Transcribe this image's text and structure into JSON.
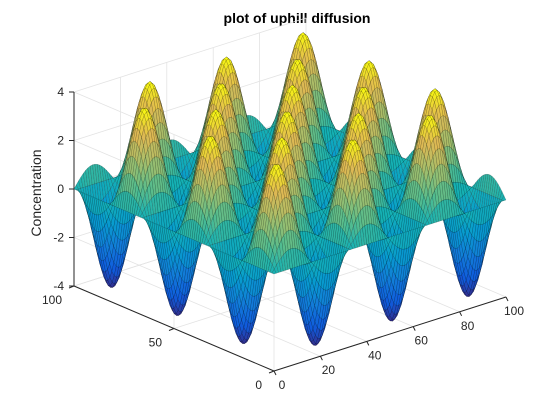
{
  "chart_data": {
    "type": "surface",
    "title": "plot of uphill diffusion",
    "xlabel": "",
    "ylabel": "",
    "zlabel": "Concentration",
    "xlim": [
      0,
      100
    ],
    "ylim": [
      0,
      100
    ],
    "zlim": [
      -4,
      4
    ],
    "x_ticks": [
      0,
      20,
      40,
      60,
      80,
      100
    ],
    "y_ticks": [
      0,
      50,
      100
    ],
    "z_ticks": [
      -4,
      -2,
      0,
      2,
      4
    ],
    "grid": true,
    "colormap": "parula",
    "surface": {
      "function": "z = A * sin(2*pi*x/L) * sin(2*pi*y/L)",
      "amplitude": 4,
      "period": 33,
      "samples_x": 101,
      "samples_y": 101
    }
  }
}
